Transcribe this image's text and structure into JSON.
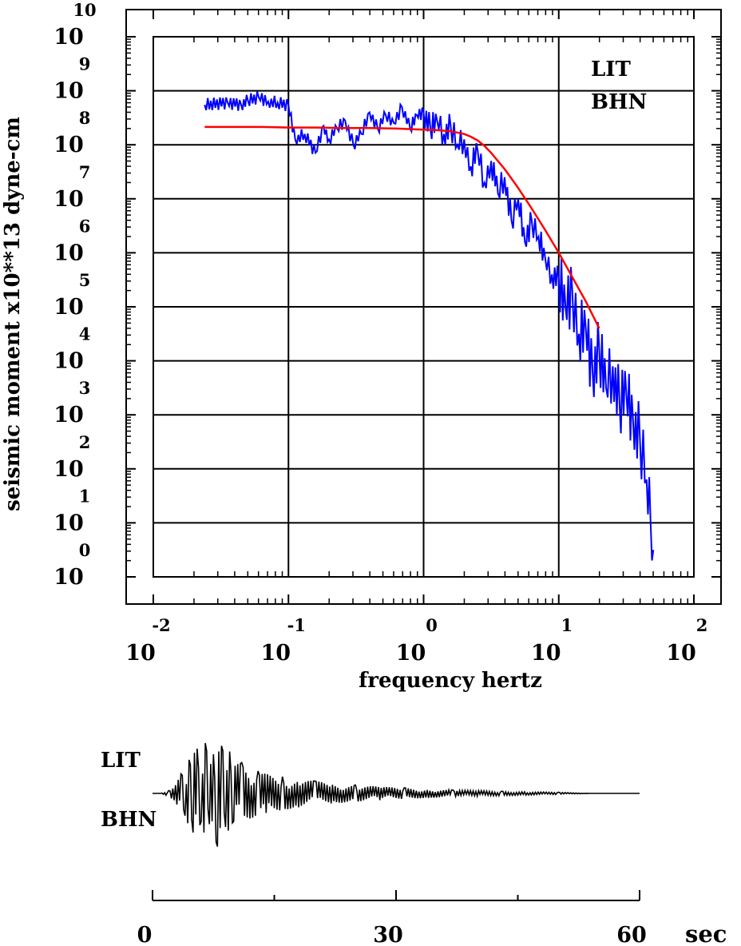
{
  "chart_data": [
    {
      "type": "line",
      "title": "",
      "xlabel": "frequency  hertz",
      "ylabel": "seismic moment x10**13 dyne-cm",
      "x_scale": "log",
      "y_scale": "log",
      "xlim": [
        0.01,
        100
      ],
      "ylim": [
        1,
        10000000000
      ],
      "x_tick_labels": [
        {
          "base": "10",
          "exp": "-2",
          "value": 0.01
        },
        {
          "base": "10",
          "exp": "-1",
          "value": 0.1
        },
        {
          "base": "10",
          "exp": "0",
          "value": 1
        },
        {
          "base": "10",
          "exp": "1",
          "value": 10
        },
        {
          "base": "10",
          "exp": "2",
          "value": 100
        }
      ],
      "y_tick_labels": [
        {
          "base": "10",
          "exp": "0",
          "value": 1
        },
        {
          "base": "10",
          "exp": "1",
          "value": 10
        },
        {
          "base": "10",
          "exp": "2",
          "value": 100
        },
        {
          "base": "10",
          "exp": "3",
          "value": 1000
        },
        {
          "base": "10",
          "exp": "4",
          "value": 10000
        },
        {
          "base": "10",
          "exp": "5",
          "value": 100000
        },
        {
          "base": "10",
          "exp": "6",
          "value": 1000000
        },
        {
          "base": "10",
          "exp": "7",
          "value": 10000000
        },
        {
          "base": "10",
          "exp": "8",
          "value": 100000000
        },
        {
          "base": "10",
          "exp": "9",
          "value": 1000000000
        },
        {
          "base": "10",
          "exp": "10",
          "value": 10000000000
        }
      ],
      "grid": true,
      "annotations": [
        "LIT",
        "BHN"
      ],
      "series": [
        {
          "color": "#0000ff",
          "style": "observed displacement spectrum",
          "log10_x": [
            -1.62,
            -1.45,
            -1.35,
            -1.3,
            -1.22,
            -1.15,
            -1.08,
            -1.0,
            -0.95,
            -0.88,
            -0.8,
            -0.74,
            -0.7,
            -0.64,
            -0.58,
            -0.52,
            -0.46,
            -0.4,
            -0.34,
            -0.28,
            -0.22,
            -0.16,
            -0.1,
            -0.05,
            0.0,
            0.05,
            0.1,
            0.15,
            0.2,
            0.25,
            0.3,
            0.35,
            0.4,
            0.45,
            0.5,
            0.55,
            0.6,
            0.65,
            0.7,
            0.75,
            0.8,
            0.85,
            0.9,
            0.95,
            1.0,
            1.05,
            1.1,
            1.15,
            1.2,
            1.25,
            1.3,
            1.35,
            1.4,
            1.45,
            1.5,
            1.55,
            1.6,
            1.65,
            1.68,
            1.7
          ],
          "log10_y": [
            8.74,
            8.78,
            8.74,
            8.82,
            8.88,
            8.8,
            8.78,
            8.73,
            8.1,
            8.2,
            7.85,
            8.35,
            8.1,
            8.3,
            8.45,
            8.0,
            8.2,
            8.6,
            8.3,
            8.55,
            8.4,
            8.7,
            8.3,
            8.55,
            8.6,
            8.3,
            8.45,
            8.2,
            8.35,
            8.0,
            8.1,
            7.6,
            7.9,
            7.3,
            7.7,
            7.1,
            7.4,
            6.6,
            7.0,
            6.2,
            6.6,
            6.3,
            5.9,
            5.6,
            5.5,
            5.0,
            5.3,
            4.5,
            4.6,
            3.8,
            4.2,
            3.5,
            3.9,
            3.2,
            3.4,
            2.9,
            2.6,
            1.8,
            1.0,
            0.5
          ]
        },
        {
          "color": "#ff0000",
          "style": "model spectrum",
          "log10_x": [
            -1.62,
            -1.4,
            -1.2,
            -1.0,
            -0.8,
            -0.6,
            -0.4,
            -0.2,
            0.0,
            0.1,
            0.2,
            0.3,
            0.35,
            0.4,
            0.45,
            0.5,
            0.6,
            0.7,
            0.8,
            0.9,
            1.0,
            1.1,
            1.2,
            1.3
          ],
          "log10_y": [
            8.33,
            8.33,
            8.33,
            8.32,
            8.32,
            8.31,
            8.31,
            8.3,
            8.28,
            8.27,
            8.25,
            8.2,
            8.15,
            8.08,
            7.98,
            7.85,
            7.55,
            7.2,
            6.82,
            6.42,
            6.0,
            5.55,
            5.1,
            4.6
          ]
        }
      ]
    },
    {
      "type": "line",
      "title": "",
      "xlabel": "sec",
      "ylabel": "",
      "xlim": [
        0,
        60
      ],
      "x_tick_labels": [
        "0",
        "30",
        "60"
      ],
      "annotations": [
        "LIT",
        "BHN"
      ],
      "series": [
        {
          "color": "#000000",
          "style": "seismogram trace",
          "x_sec": [
            0.0,
            1.0,
            2.0,
            3.0,
            3.5,
            4.0,
            4.5,
            5.0,
            5.5,
            6.0,
            6.5,
            7.0,
            7.5,
            8.0,
            8.5,
            9.0,
            9.5,
            10.0,
            11.0,
            12.0,
            13.0,
            14.0,
            16.0,
            18.0,
            20.0,
            22.0,
            25.0,
            28.0,
            31.0,
            34.0,
            37.0,
            40.0,
            43.0,
            46.0,
            50.0,
            54.0,
            60.0
          ],
          "amplitude": [
            0.0,
            0.0,
            0.05,
            -0.2,
            0.35,
            -0.4,
            0.6,
            -0.7,
            0.8,
            -0.5,
            0.9,
            -0.55,
            0.7,
            -0.95,
            0.85,
            -0.6,
            0.75,
            -0.5,
            0.55,
            -0.45,
            0.4,
            -0.35,
            0.3,
            -0.25,
            0.22,
            -0.18,
            0.15,
            -0.12,
            0.1,
            -0.08,
            0.06,
            -0.05,
            0.04,
            -0.03,
            0.02,
            0.0,
            0.0
          ]
        }
      ]
    }
  ]
}
